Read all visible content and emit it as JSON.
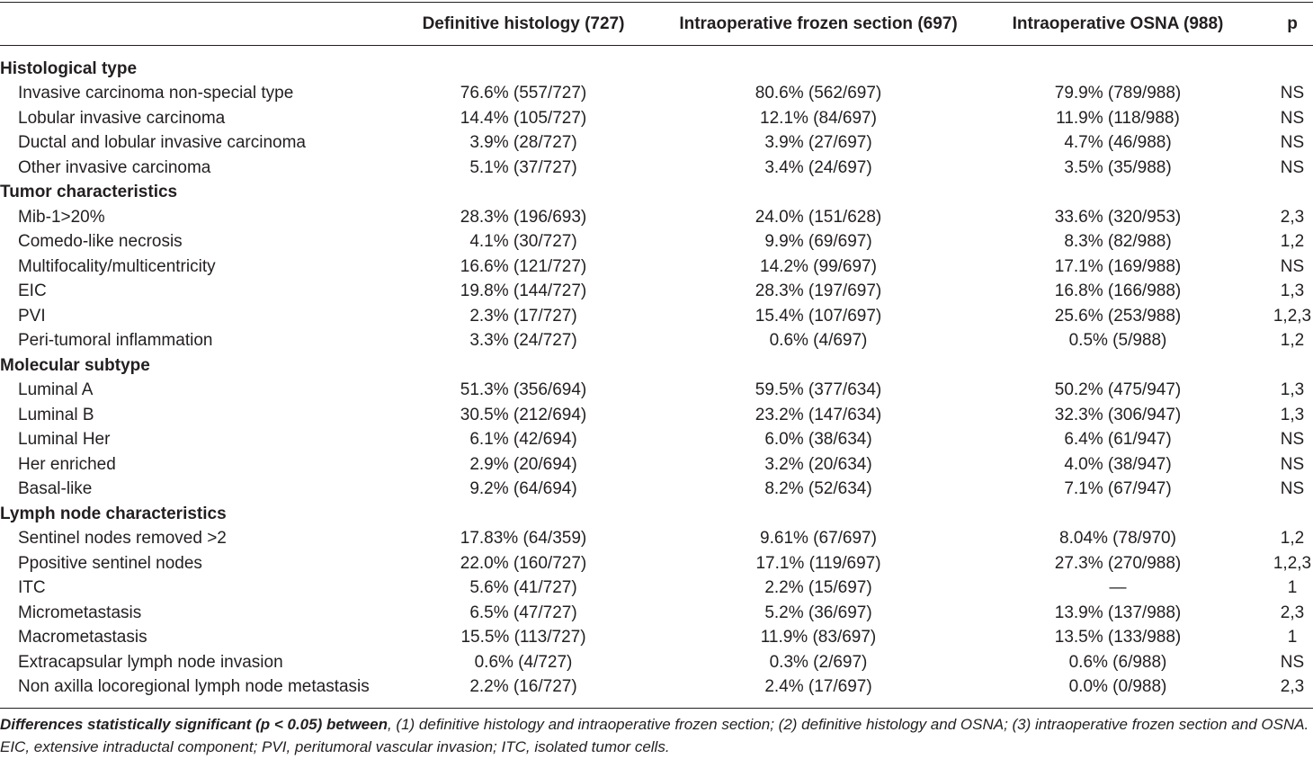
{
  "header": {
    "col0": "",
    "col1": "Definitive histology (727)",
    "col2": "Intraoperative frozen section (697)",
    "col3": "Intraoperative OSNA (988)",
    "col4": "p"
  },
  "rows": [
    {
      "kind": "section",
      "label": "Histological type"
    },
    {
      "kind": "item",
      "label": "Invasive carcinoma non-special type",
      "v1": "76.6% (557/727)",
      "v2": "80.6% (562/697)",
      "v3": "79.9% (789/988)",
      "p": "NS"
    },
    {
      "kind": "item",
      "label": "Lobular invasive carcinoma",
      "v1": "14.4% (105/727)",
      "v2": "12.1% (84/697)",
      "v3": "11.9% (118/988)",
      "p": "NS"
    },
    {
      "kind": "item",
      "label": "Ductal and lobular invasive carcinoma",
      "v1": "3.9% (28/727)",
      "v2": "3.9% (27/697)",
      "v3": "4.7% (46/988)",
      "p": "NS"
    },
    {
      "kind": "item",
      "label": "Other invasive carcinoma",
      "v1": "5.1% (37/727)",
      "v2": "3.4% (24/697)",
      "v3": "3.5% (35/988)",
      "p": "NS"
    },
    {
      "kind": "section",
      "label": "Tumor characteristics"
    },
    {
      "kind": "item",
      "label": "Mib-1>20%",
      "v1": "28.3% (196/693)",
      "v2": "24.0% (151/628)",
      "v3": "33.6% (320/953)",
      "p": "2,3"
    },
    {
      "kind": "item",
      "label": "Comedo-like necrosis",
      "v1": "4.1% (30/727)",
      "v2": "9.9% (69/697)",
      "v3": "8.3% (82/988)",
      "p": "1,2"
    },
    {
      "kind": "item",
      "label": "Multifocality/multicentricity",
      "v1": "16.6% (121/727)",
      "v2": "14.2% (99/697)",
      "v3": "17.1% (169/988)",
      "p": "NS"
    },
    {
      "kind": "item",
      "label": "EIC",
      "v1": "19.8% (144/727)",
      "v2": "28.3% (197/697)",
      "v3": "16.8% (166/988)",
      "p": "1,3"
    },
    {
      "kind": "item",
      "label": "PVI",
      "v1": "2.3% (17/727)",
      "v2": "15.4% (107/697)",
      "v3": "25.6% (253/988)",
      "p": "1,2,3"
    },
    {
      "kind": "item",
      "label": "Peri-tumoral inflammation",
      "v1": "3.3% (24/727)",
      "v2": "0.6% (4/697)",
      "v3": "0.5% (5/988)",
      "p": "1,2"
    },
    {
      "kind": "section",
      "label": "Molecular subtype"
    },
    {
      "kind": "item",
      "label": "Luminal A",
      "v1": "51.3% (356/694)",
      "v2": "59.5% (377/634)",
      "v3": "50.2% (475/947)",
      "p": "1,3"
    },
    {
      "kind": "item",
      "label": "Luminal B",
      "v1": "30.5% (212/694)",
      "v2": "23.2% (147/634)",
      "v3": "32.3% (306/947)",
      "p": "1,3"
    },
    {
      "kind": "item",
      "label": "Luminal Her",
      "v1": "6.1% (42/694)",
      "v2": "6.0% (38/634)",
      "v3": "6.4% (61/947)",
      "p": "NS"
    },
    {
      "kind": "item",
      "label": "Her enriched",
      "v1": "2.9% (20/694)",
      "v2": "3.2% (20/634)",
      "v3": "4.0% (38/947)",
      "p": "NS"
    },
    {
      "kind": "item",
      "label": "Basal-like",
      "v1": "9.2% (64/694)",
      "v2": "8.2% (52/634)",
      "v3": "7.1% (67/947)",
      "p": "NS"
    },
    {
      "kind": "section",
      "label": "Lymph node characteristics"
    },
    {
      "kind": "item",
      "label": "Sentinel nodes removed >2",
      "v1": "17.83% (64/359)",
      "v2": "9.61% (67/697)",
      "v3": "8.04% (78/970)",
      "p": "1,2"
    },
    {
      "kind": "item",
      "label": "Ppositive sentinel nodes",
      "v1": "22.0% (160/727)",
      "v2": "17.1% (119/697)",
      "v3": "27.3% (270/988)",
      "p": "1,2,3"
    },
    {
      "kind": "item",
      "label": "ITC",
      "v1": "5.6% (41/727)",
      "v2": "2.2% (15/697)",
      "v3": "—",
      "p": "1"
    },
    {
      "kind": "item",
      "label": "Micrometastasis",
      "v1": "6.5% (47/727)",
      "v2": "5.2% (36/697)",
      "v3": "13.9% (137/988)",
      "p": "2,3"
    },
    {
      "kind": "item",
      "label": "Macrometastasis",
      "v1": "15.5% (113/727)",
      "v2": "11.9% (83/697)",
      "v3": "13.5% (133/988)",
      "p": "1"
    },
    {
      "kind": "item",
      "label": "Extracapsular lymph node invasion",
      "v1": "0.6% (4/727)",
      "v2": "0.3% (2/697)",
      "v3": "0.6% (6/988)",
      "p": "NS"
    },
    {
      "kind": "item",
      "label": "Non axilla locoregional lymph node metastasis",
      "v1": "2.2% (16/727)",
      "v2": "2.4% (17/697)",
      "v3": "0.0% (0/988)",
      "p": "2,3"
    }
  ],
  "footnote": {
    "bold_lead": "Differences statistically significant (p < 0.05) between",
    "line1_rest": ", (1) definitive histology and intraoperative frozen section; (2) definitive histology and OSNA; (3) intraoperative frozen section and OSNA.",
    "line2": "EIC, extensive intraductal component; PVI, peritumoral vascular invasion; ITC, isolated tumor cells."
  }
}
